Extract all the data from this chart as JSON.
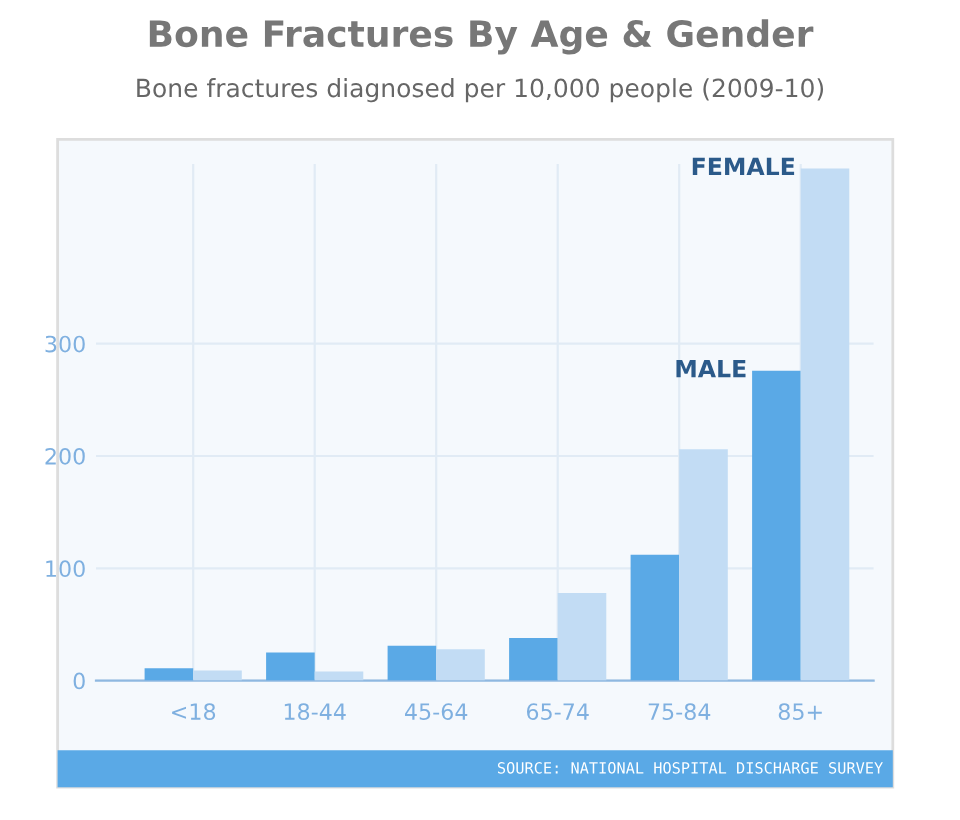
{
  "chart_data": {
    "type": "bar",
    "title": "Bone Fractures By Age & Gender",
    "subtitle": "Bone fractures diagnosed per 10,000 people (2009-10)",
    "categories": [
      "<18",
      "18-44",
      "45-64",
      "65-74",
      "75-84",
      "85+"
    ],
    "series": [
      {
        "name": "MALE",
        "color": "#5aa9e6",
        "values": [
          11,
          25,
          31,
          38,
          112,
          276
        ]
      },
      {
        "name": "FEMALE",
        "color": "#c2dcf4",
        "values": [
          9,
          8,
          28,
          78,
          206,
          456
        ]
      }
    ],
    "ylim": [
      0,
      460
    ],
    "yticks": [
      0,
      100,
      200,
      300
    ],
    "grid": true,
    "annotations": [
      "SOURCE: NATIONAL HOSPITAL DISCHARGE SURVEY"
    ]
  }
}
